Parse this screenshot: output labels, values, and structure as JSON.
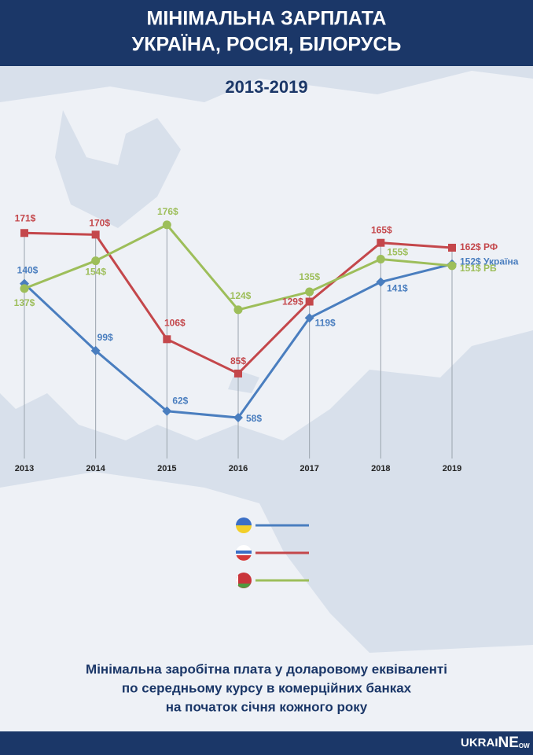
{
  "chart_data": {
    "type": "line",
    "title": [
      "МІНІМАЛЬНА ЗАРПЛАТА",
      "УКРАЇНА, РОСІЯ, БІЛОРУСЬ"
    ],
    "subtitle": "2013-2019",
    "categories": [
      "2013",
      "2014",
      "2015",
      "2016",
      "2017",
      "2018",
      "2019"
    ],
    "series": [
      {
        "name": "Україна",
        "color": "#4a7ebf",
        "marker": "diamond",
        "values": [
          140,
          99,
          62,
          58,
          119,
          141,
          152
        ],
        "value_labels": [
          "140$",
          "99$",
          "62$",
          "58$",
          "119$",
          "141$",
          "152$"
        ]
      },
      {
        "name": "РФ",
        "color": "#c4474b",
        "marker": "square",
        "values": [
          171,
          170,
          106,
          85,
          129,
          165,
          162
        ],
        "value_labels": [
          "171$",
          "170$",
          "106$",
          "85$",
          "129$",
          "165$",
          "162$"
        ]
      },
      {
        "name": "РБ",
        "color": "#9dbe5a",
        "marker": "circle",
        "values": [
          137,
          154,
          176,
          124,
          135,
          155,
          151
        ],
        "value_labels": [
          "137$",
          "154$",
          "176$",
          "124$",
          "135$",
          "155$",
          "151$"
        ]
      }
    ],
    "ylim": [
      33,
      200
    ],
    "note": [
      "Мінімальна заробітна плата у доларовому еквіваленті",
      "по середньому курсу в комерційних банках",
      "на початок січня кожного року"
    ],
    "logo": [
      "UKRAI",
      "NE",
      "OW"
    ]
  }
}
